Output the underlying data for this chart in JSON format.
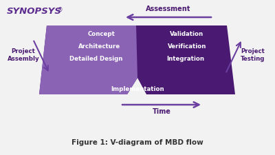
{
  "bg_color": "#f2f2f2",
  "synopsys_color": "#5c2d8e",
  "left_arm_color": "#8b63b5",
  "right_arm_color": "#4a1a72",
  "arrow_color": "#6b3fa0",
  "text_white": "#ffffff",
  "text_dark": "#4a1a72",
  "caption_color": "#333333",
  "caption": "Figure 1: V-diagram of MBD flow",
  "left_labels": [
    "Concept",
    "Architecture",
    "Detailed Design"
  ],
  "right_labels": [
    "Validation",
    "Verification",
    "Integration"
  ],
  "bottom_label": "Implementation",
  "top_arrow_label": "Assessment",
  "bottom_arrow_label": "Time",
  "left_side_line1": "Project",
  "left_side_line2": "Assembly",
  "right_side_line1": "Project",
  "right_side_line2": "Testing",
  "synopsys_text": "SYNOPSYS",
  "synopsys_reg": "®"
}
